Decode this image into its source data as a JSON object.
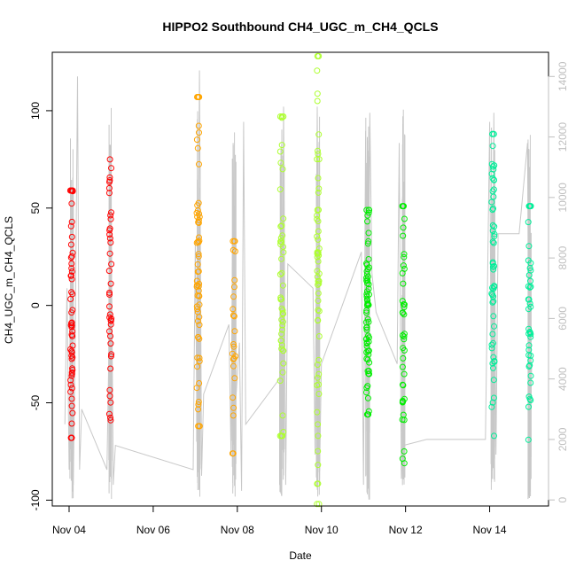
{
  "chart_data": {
    "type": "scatter",
    "title": "HIPPO2 Southbound CH4_UGC_m_CH4_QCLS",
    "xlabel": "Date",
    "ylabel": "CH4_UGC_m_CH4_QCLS",
    "x_ticks": [
      {
        "label": "Nov 04",
        "day": 4
      },
      {
        "label": "Nov 06",
        "day": 6
      },
      {
        "label": "Nov 08",
        "day": 8
      },
      {
        "label": "Nov 10",
        "day": 10
      },
      {
        "label": "Nov 12",
        "day": 12
      },
      {
        "label": "Nov 14",
        "day": 14
      }
    ],
    "xlim": [
      3.6,
      15.4
    ],
    "ylim": [
      -103,
      130
    ],
    "y_ticks": [
      -100,
      -50,
      0,
      50,
      100
    ],
    "y2lim": [
      -200,
      14800
    ],
    "y2_ticks": [
      0,
      2000,
      4000,
      6000,
      8000,
      10000,
      12000,
      14000
    ],
    "grid": false,
    "legend": "none",
    "background_series": {
      "color": "#c8c8c8",
      "description_axis": "right",
      "path": [
        [
          3.9,
          2500
        ],
        [
          3.95,
          7000
        ],
        [
          4.0,
          1000
        ],
        [
          4.05,
          6500
        ],
        [
          4.1,
          500
        ],
        [
          4.15,
          6000
        ],
        [
          4.2,
          14000
        ],
        [
          4.25,
          1000
        ],
        [
          4.3,
          3000
        ],
        [
          4.9,
          1000
        ],
        [
          5.0,
          9500
        ],
        [
          5.05,
          500
        ],
        [
          5.1,
          1800
        ],
        [
          6.95,
          1000
        ],
        [
          7.0,
          8500
        ],
        [
          7.05,
          1200
        ],
        [
          7.1,
          14200
        ],
        [
          7.15,
          800
        ],
        [
          7.2,
          3500
        ],
        [
          7.8,
          5800
        ],
        [
          7.85,
          1500
        ],
        [
          7.9,
          11800
        ],
        [
          7.95,
          3000
        ],
        [
          8.05,
          5200
        ],
        [
          8.1,
          300
        ],
        [
          8.15,
          12500
        ],
        [
          8.2,
          2500
        ],
        [
          9.0,
          4000
        ],
        [
          9.05,
          1500
        ],
        [
          9.1,
          13000
        ],
        [
          9.15,
          500
        ],
        [
          9.2,
          7800
        ],
        [
          9.8,
          7000
        ],
        [
          9.85,
          1500
        ],
        [
          9.9,
          13000
        ],
        [
          9.95,
          500
        ],
        [
          10.0,
          4500
        ],
        [
          10.95,
          8200
        ],
        [
          11.0,
          500
        ],
        [
          11.05,
          12200
        ],
        [
          11.1,
          1000
        ],
        [
          11.15,
          12800
        ],
        [
          11.2,
          7500
        ],
        [
          11.3,
          6200
        ],
        [
          11.8,
          4500
        ],
        [
          11.85,
          11800
        ],
        [
          11.9,
          700
        ],
        [
          11.95,
          1800
        ],
        [
          12.5,
          2000
        ],
        [
          13.9,
          2000
        ],
        [
          14.0,
          12500
        ],
        [
          14.05,
          1000
        ],
        [
          14.1,
          12800
        ],
        [
          14.15,
          1500
        ],
        [
          14.2,
          8800
        ],
        [
          14.7,
          8800
        ],
        [
          14.9,
          11800
        ],
        [
          14.95,
          800
        ],
        [
          15.0,
          4500
        ]
      ]
    },
    "series": [
      {
        "color": "#ff0000",
        "flights": [
          {
            "day": 4.06,
            "xw": 0.06,
            "ymin": -68,
            "ymax": 59,
            "n": 60
          },
          {
            "day": 4.98,
            "xw": 0.05,
            "ymin": -59,
            "ymax": 75,
            "n": 40
          }
        ]
      },
      {
        "color": "#ffa500",
        "flights": [
          {
            "day": 7.07,
            "xw": 0.07,
            "ymin": -62,
            "ymax": 107,
            "n": 60
          },
          {
            "day": 7.92,
            "xw": 0.07,
            "ymin": -76,
            "ymax": 33,
            "n": 25
          }
        ]
      },
      {
        "color": "#adff2f",
        "flights": [
          {
            "day": 9.06,
            "xw": 0.08,
            "ymin": -67,
            "ymax": 97,
            "n": 50
          },
          {
            "day": 9.92,
            "xw": 0.06,
            "ymin": -102,
            "ymax": 128,
            "n": 60
          }
        ]
      },
      {
        "color": "#00ee00",
        "flights": [
          {
            "day": 11.1,
            "xw": 0.07,
            "ymin": -56,
            "ymax": 49,
            "n": 70
          },
          {
            "day": 11.95,
            "xw": 0.05,
            "ymin": -81,
            "ymax": 51,
            "n": 40
          }
        ]
      },
      {
        "color": "#00ee99",
        "flights": [
          {
            "day": 14.08,
            "xw": 0.07,
            "ymin": -67,
            "ymax": 88,
            "n": 55
          },
          {
            "day": 14.95,
            "xw": 0.06,
            "ymin": -69,
            "ymax": 51,
            "n": 40
          }
        ]
      }
    ]
  }
}
